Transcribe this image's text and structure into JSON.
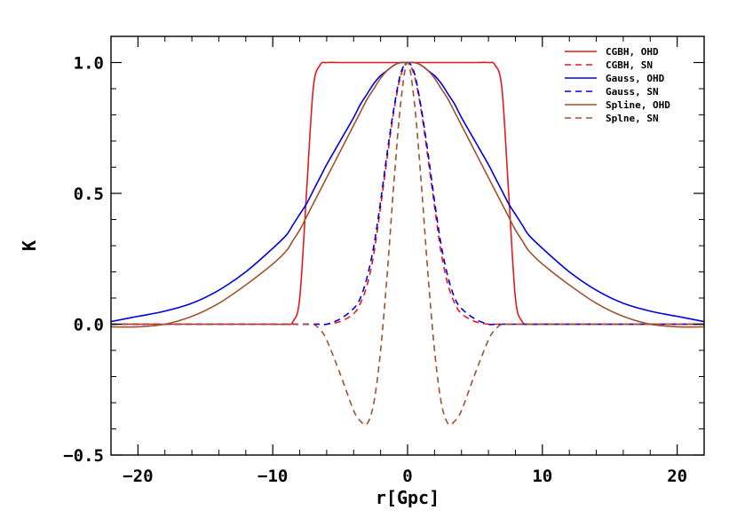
{
  "chart_data": {
    "type": "line",
    "xlabel": "r[Gpc]",
    "ylabel": "K",
    "xlim": [
      -22,
      22
    ],
    "ylim": [
      -0.5,
      1.1
    ],
    "xticks": [
      -20,
      -10,
      0,
      10,
      20
    ],
    "xtick_labels": [
      "−20",
      "−10",
      "0",
      "10",
      "20"
    ],
    "yticks": [
      -0.5,
      0.0,
      0.5,
      1.0
    ],
    "ytick_labels": [
      "−0.5",
      "0.0",
      "0.5",
      "1.0"
    ],
    "grid": false,
    "legend_position": "top-right",
    "x": [
      -22,
      -20,
      -18,
      -16,
      -14,
      -12,
      -10,
      -9,
      -8.5,
      -8,
      -7.5,
      -7,
      -6.5,
      -6,
      -5,
      -4,
      -3.5,
      -3,
      -2.5,
      -2,
      -1.5,
      -1,
      -0.5,
      0,
      0.5,
      1,
      1.5,
      2,
      2.5,
      3,
      3.5,
      4,
      5,
      6,
      6.5,
      7,
      7.5,
      8,
      8.5,
      9,
      10,
      12,
      14,
      16,
      18,
      20,
      22
    ],
    "series": [
      {
        "name": "CGBH, OHD",
        "color": "#e41a1c",
        "dash": "solid",
        "values": [
          0,
          0,
          0,
          0,
          0,
          0,
          0,
          0,
          0.01,
          0.1,
          0.5,
          0.9,
          0.99,
          1,
          1,
          1,
          1,
          1,
          1,
          1,
          1,
          1,
          1,
          1,
          1,
          1,
          1,
          1,
          1,
          1,
          1,
          1,
          1,
          1,
          0.99,
          0.9,
          0.5,
          0.1,
          0.01,
          0,
          0,
          0,
          0,
          0,
          0,
          0,
          0
        ]
      },
      {
        "name": "CGBH, SN",
        "color": "#e41a1c",
        "dash": "dashed",
        "values": [
          0,
          0,
          0,
          0,
          0,
          0,
          0,
          0,
          0,
          0,
          0,
          0,
          0,
          0,
          0.01,
          0.04,
          0.08,
          0.15,
          0.27,
          0.45,
          0.64,
          0.82,
          0.95,
          1,
          0.95,
          0.82,
          0.64,
          0.45,
          0.27,
          0.15,
          0.08,
          0.04,
          0.01,
          0,
          0,
          0,
          0,
          0,
          0,
          0,
          0,
          0,
          0,
          0,
          0,
          0,
          0
        ]
      },
      {
        "name": "Gauss, OHD",
        "color": "#0000e0",
        "dash": "solid",
        "values": [
          0.01,
          0.03,
          0.05,
          0.08,
          0.13,
          0.2,
          0.29,
          0.34,
          0.38,
          0.42,
          0.46,
          0.51,
          0.56,
          0.61,
          0.7,
          0.79,
          0.84,
          0.88,
          0.92,
          0.95,
          0.97,
          0.99,
          1,
          1,
          1,
          0.99,
          0.97,
          0.95,
          0.92,
          0.88,
          0.84,
          0.79,
          0.7,
          0.61,
          0.56,
          0.51,
          0.46,
          0.42,
          0.38,
          0.34,
          0.29,
          0.2,
          0.13,
          0.08,
          0.05,
          0.03,
          0.01
        ]
      },
      {
        "name": "Gauss, SN",
        "color": "#0000e0",
        "dash": "dashed",
        "values": [
          0,
          0,
          0,
          0,
          0,
          0,
          0,
          0,
          0,
          0,
          0,
          0,
          0,
          0,
          0.02,
          0.06,
          0.1,
          0.18,
          0.3,
          0.47,
          0.66,
          0.83,
          0.96,
          1,
          0.96,
          0.83,
          0.66,
          0.47,
          0.3,
          0.18,
          0.1,
          0.06,
          0.02,
          0,
          0,
          0,
          0,
          0,
          0,
          0,
          0,
          0,
          0,
          0,
          0,
          0,
          0
        ]
      },
      {
        "name": "Spline, OHD",
        "color": "#a0522d",
        "dash": "solid",
        "values": [
          -0.01,
          -0.01,
          0,
          0.03,
          0.08,
          0.15,
          0.23,
          0.28,
          0.32,
          0.36,
          0.41,
          0.46,
          0.51,
          0.56,
          0.66,
          0.76,
          0.81,
          0.86,
          0.9,
          0.94,
          0.97,
          0.99,
          1,
          1,
          1,
          0.99,
          0.97,
          0.94,
          0.9,
          0.86,
          0.81,
          0.76,
          0.66,
          0.56,
          0.51,
          0.46,
          0.41,
          0.36,
          0.32,
          0.28,
          0.23,
          0.15,
          0.08,
          0.03,
          0,
          -0.01,
          -0.01
        ]
      },
      {
        "name": "Splne, SN",
        "color": "#a0522d",
        "dash": "dashed",
        "values": [
          0,
          0,
          0,
          0,
          0,
          0,
          0,
          0,
          0,
          0,
          0,
          0,
          -0.02,
          -0.06,
          -0.19,
          -0.33,
          -0.37,
          -0.38,
          -0.3,
          -0.1,
          0.2,
          0.55,
          0.85,
          1,
          0.85,
          0.55,
          0.2,
          -0.1,
          -0.3,
          -0.38,
          -0.37,
          -0.33,
          -0.19,
          -0.06,
          -0.02,
          0,
          0,
          0,
          0,
          0,
          0,
          0,
          0,
          0,
          0,
          0,
          0
        ]
      }
    ]
  }
}
